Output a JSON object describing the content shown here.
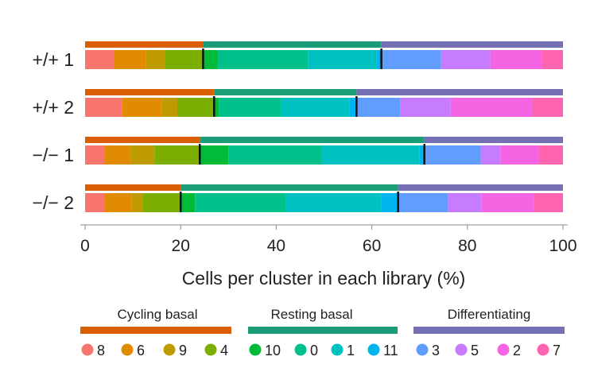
{
  "chart_data": {
    "type": "bar",
    "orientation": "horizontal",
    "stacked": true,
    "categories": [
      "+/+ 1",
      "+/+ 2",
      "−/− 1",
      "−/− 2"
    ],
    "xlabel": "Cells per cluster in each library (%)",
    "ylabel": "",
    "title": "",
    "xlim": [
      0,
      100
    ],
    "xticks": [
      0,
      20,
      40,
      60,
      80,
      100
    ],
    "grid": false,
    "legend_position": "bottom",
    "series": [
      {
        "name": "8",
        "color": "#F8766D",
        "values": [
          6.0,
          7.8,
          4.0,
          4.0
        ]
      },
      {
        "name": "6",
        "color": "#E08B00",
        "values": [
          6.7,
          8.2,
          5.5,
          5.7
        ]
      },
      {
        "name": "9",
        "color": "#C09B00",
        "values": [
          4.0,
          3.3,
          5.0,
          2.3
        ]
      },
      {
        "name": "4",
        "color": "#7CAE00",
        "values": [
          8.0,
          7.7,
          9.5,
          8.0
        ]
      },
      {
        "name": "10",
        "color": "#00BA38",
        "values": [
          3.0,
          1.0,
          6.0,
          3.0
        ]
      },
      {
        "name": "0",
        "color": "#00C08B",
        "values": [
          19.0,
          13.0,
          19.5,
          19.0
        ]
      },
      {
        "name": "1",
        "color": "#00C1C1",
        "values": [
          14.3,
          14.3,
          20.5,
          20.0
        ]
      },
      {
        "name": "11",
        "color": "#00B4F0",
        "values": [
          1.0,
          1.5,
          1.0,
          3.5
        ]
      },
      {
        "name": "3",
        "color": "#619CFF",
        "values": [
          12.5,
          9.2,
          11.8,
          10.5
        ]
      },
      {
        "name": "5",
        "color": "#C77CFF",
        "values": [
          10.3,
          10.5,
          4.2,
          7.0
        ]
      },
      {
        "name": "2",
        "color": "#F564E3",
        "values": [
          10.8,
          17.0,
          8.0,
          11.0
        ]
      },
      {
        "name": "7",
        "color": "#FF64B0",
        "values": [
          4.4,
          6.5,
          5.0,
          6.0
        ]
      }
    ],
    "groups": [
      {
        "name": "Cycling basal",
        "color": "#D95F02",
        "series": [
          "8",
          "6",
          "9",
          "4"
        ],
        "totals": [
          24.7,
          27.0,
          24.0,
          20.0
        ]
      },
      {
        "name": "Resting basal",
        "color": "#1B9E77",
        "series": [
          "10",
          "0",
          "1",
          "11"
        ],
        "totals": [
          37.3,
          29.8,
          47.0,
          45.5
        ]
      },
      {
        "name": "Differentiating",
        "color": "#7570B3",
        "series": [
          "3",
          "5",
          "2",
          "7"
        ],
        "totals": [
          38.0,
          43.2,
          29.0,
          34.5
        ]
      }
    ]
  }
}
